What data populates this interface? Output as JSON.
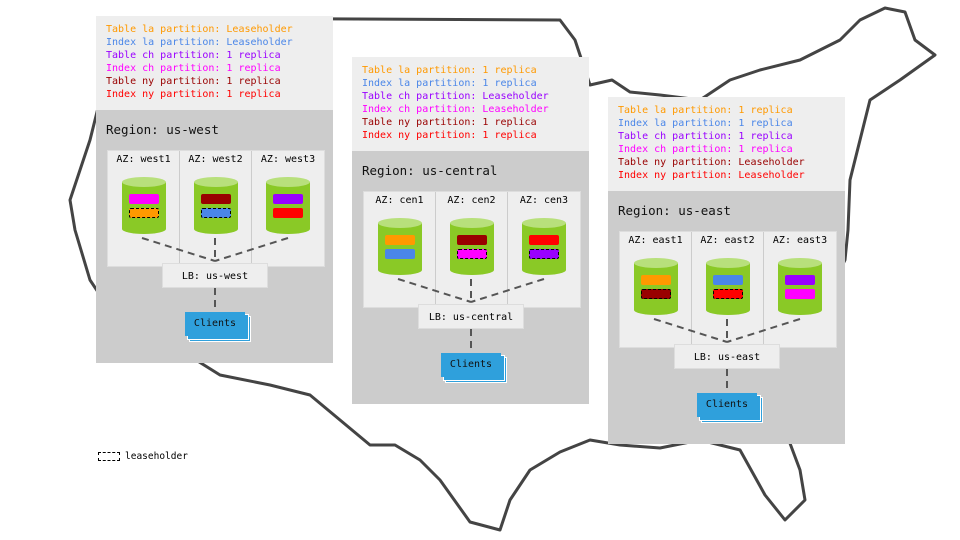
{
  "colors": {
    "table_la": "#ff9900",
    "index_la": "#4a86e8",
    "table_ch": "#9900ff",
    "index_ch": "#ff00ff",
    "table_ny": "#990000",
    "index_ny": "#ff0000"
  },
  "regions": [
    {
      "title": "Region: us-west",
      "lb": "LB: us-west",
      "clients": "Clients",
      "legend": [
        {
          "text": "Table la partition: Leaseholder",
          "color": "table_la"
        },
        {
          "text": "Index la partition: Leaseholder",
          "color": "index_la"
        },
        {
          "text": "Table ch partition: 1 replica",
          "color": "table_ch"
        },
        {
          "text": "Index ch partition: 1 replica",
          "color": "index_ch"
        },
        {
          "text": "Table ny partition: 1 replica",
          "color": "table_ny"
        },
        {
          "text": "Index ny partition: 1 replica",
          "color": "index_ny"
        }
      ],
      "azs": [
        {
          "label": "AZ: west1",
          "replicas": [
            {
              "color": "index_ch",
              "leaseholder": false
            },
            {
              "color": "table_la",
              "leaseholder": true
            }
          ]
        },
        {
          "label": "AZ: west2",
          "replicas": [
            {
              "color": "table_ny",
              "leaseholder": false
            },
            {
              "color": "index_la",
              "leaseholder": true
            }
          ]
        },
        {
          "label": "AZ: west3",
          "replicas": [
            {
              "color": "table_ch",
              "leaseholder": false
            },
            {
              "color": "index_ny",
              "leaseholder": false
            }
          ]
        }
      ]
    },
    {
      "title": "Region: us-central",
      "lb": "LB: us-central",
      "clients": "Clients",
      "legend": [
        {
          "text": "Table la partition: 1 replica",
          "color": "table_la"
        },
        {
          "text": "Index la partition: 1 replica",
          "color": "index_la"
        },
        {
          "text": "Table ch partition: Leaseholder",
          "color": "table_ch"
        },
        {
          "text": "Index ch partition: Leaseholder",
          "color": "index_ch"
        },
        {
          "text": "Table ny partition: 1 replica",
          "color": "table_ny"
        },
        {
          "text": "Index ny partition: 1 replica",
          "color": "index_ny"
        }
      ],
      "azs": [
        {
          "label": "AZ: cen1",
          "replicas": [
            {
              "color": "table_la",
              "leaseholder": false
            },
            {
              "color": "index_la",
              "leaseholder": false
            }
          ]
        },
        {
          "label": "AZ: cen2",
          "replicas": [
            {
              "color": "table_ny",
              "leaseholder": false
            },
            {
              "color": "index_ch",
              "leaseholder": true
            }
          ]
        },
        {
          "label": "AZ: cen3",
          "replicas": [
            {
              "color": "index_ny",
              "leaseholder": false
            },
            {
              "color": "table_ch",
              "leaseholder": true
            }
          ]
        }
      ]
    },
    {
      "title": "Region: us-east",
      "lb": "LB: us-east",
      "clients": "Clients",
      "legend": [
        {
          "text": "Table la partition: 1 replica",
          "color": "table_la"
        },
        {
          "text": "Index la partition: 1 replica",
          "color": "index_la"
        },
        {
          "text": "Table ch partition: 1 replica",
          "color": "table_ch"
        },
        {
          "text": "Index ch partition: 1 replica",
          "color": "index_ch"
        },
        {
          "text": "Table ny partition: Leaseholder",
          "color": "table_ny"
        },
        {
          "text": "Index ny partition: Leaseholder",
          "color": "index_ny"
        }
      ],
      "azs": [
        {
          "label": "AZ: east1",
          "replicas": [
            {
              "color": "table_la",
              "leaseholder": false
            },
            {
              "color": "table_ny",
              "leaseholder": true
            }
          ]
        },
        {
          "label": "AZ: east2",
          "replicas": [
            {
              "color": "index_la",
              "leaseholder": false
            },
            {
              "color": "index_ny",
              "leaseholder": true
            }
          ]
        },
        {
          "label": "AZ: east3",
          "replicas": [
            {
              "color": "table_ch",
              "leaseholder": false
            },
            {
              "color": "index_ch",
              "leaseholder": false
            }
          ]
        }
      ]
    }
  ],
  "key": {
    "label": "leaseholder"
  }
}
